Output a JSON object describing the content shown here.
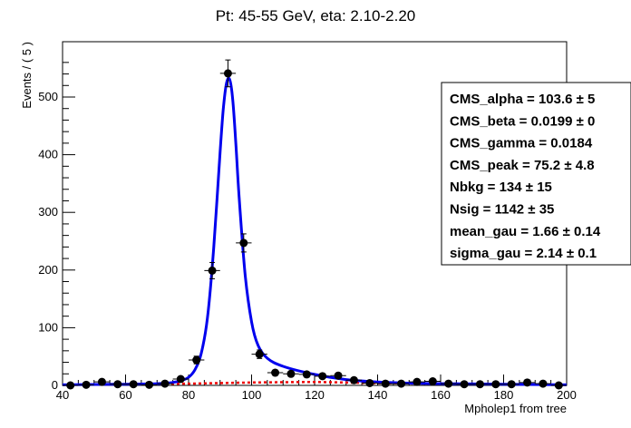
{
  "chart_data": {
    "type": "scatter",
    "title": "Pt: 45-55 GeV, eta: 2.10-2.20",
    "xlabel": "Mpholep1 from tree",
    "ylabel": "Events / ( 5 )",
    "xlim": [
      40,
      200
    ],
    "ylim": [
      0,
      580
    ],
    "x_ticks": [
      40,
      60,
      80,
      100,
      120,
      140,
      160,
      180,
      200
    ],
    "y_ticks": [
      0,
      100,
      200,
      300,
      400,
      500
    ],
    "bin_width": 5,
    "grid": false,
    "legend": "none",
    "series": [
      {
        "kind": "data-points-with-errors",
        "color": "#000000",
        "x": [
          42.5,
          47.5,
          52.5,
          57.5,
          62.5,
          67.5,
          72.5,
          77.5,
          82.5,
          87.5,
          92.5,
          97.5,
          102.5,
          107.5,
          112.5,
          117.5,
          122.5,
          127.5,
          132.5,
          137.5,
          142.5,
          147.5,
          152.5,
          157.5,
          162.5,
          167.5,
          172.5,
          177.5,
          182.5,
          187.5,
          192.5,
          197.5
        ],
        "y": [
          0,
          1,
          6,
          2,
          2,
          1,
          3,
          11,
          44,
          199,
          541,
          247,
          54,
          22,
          20,
          19,
          16,
          17,
          9,
          4,
          3,
          3,
          6,
          7,
          3,
          2,
          2,
          2,
          2,
          5,
          3,
          0
        ]
      },
      {
        "kind": "fit-total",
        "color": "#0000ee",
        "x": [
          40,
          60,
          70,
          75,
          78,
          80,
          82,
          84,
          86,
          88,
          90,
          91,
          92,
          93,
          94,
          95,
          96,
          98,
          100,
          102,
          105,
          110,
          120,
          130,
          140,
          150,
          160,
          180,
          200
        ],
        "y": [
          1,
          2,
          3,
          5,
          9,
          14,
          27,
          55,
          117,
          240,
          405,
          478,
          523,
          531,
          497,
          420,
          330,
          190,
          110,
          70,
          47,
          33,
          19,
          10,
          6,
          4,
          3,
          2,
          1
        ]
      },
      {
        "kind": "fit-background",
        "color": "#ee0000",
        "x": [
          40,
          60,
          80,
          100,
          120,
          140,
          160,
          180,
          200
        ],
        "y": [
          1,
          2,
          3,
          5,
          6,
          4,
          3,
          2,
          1
        ]
      }
    ],
    "stats_box": [
      {
        "name": "CMS_alpha",
        "value": "103.6",
        "error": "5"
      },
      {
        "name": "CMS_beta",
        "value": "0.0199",
        "error": "0"
      },
      {
        "name": "CMS_gamma",
        "value": "0.0184",
        "error": ""
      },
      {
        "name": "CMS_peak",
        "value": "75.2",
        "error": "4.8"
      },
      {
        "name": "Nbkg",
        "value": "134",
        "error": "15"
      },
      {
        "name": "Nsig",
        "value": "1142",
        "error": "35"
      },
      {
        "name": "mean_gau",
        "value": "1.66",
        "error": "0.14"
      },
      {
        "name": "sigma_gau",
        "value": "2.14",
        "error": "0.1"
      }
    ]
  }
}
